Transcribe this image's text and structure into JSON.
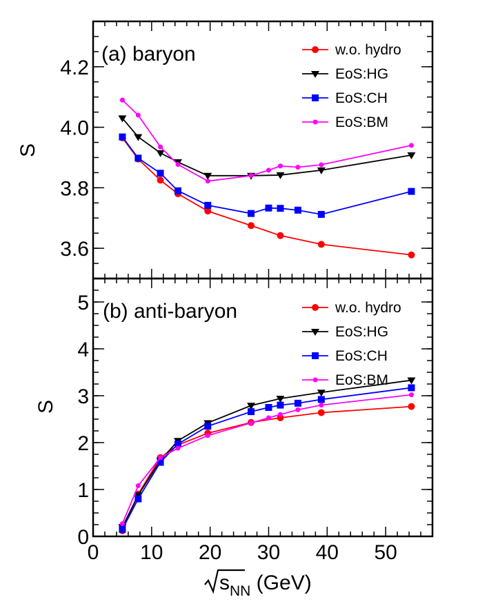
{
  "chart_data": [
    {
      "type": "line",
      "panel_label": "(a) baryon",
      "xlabel": "√s_NN (GeV)",
      "ylabel": "S",
      "xlim": [
        0,
        58
      ],
      "ylim": [
        3.5,
        4.35
      ],
      "y_ticks": [
        "3.6",
        "3.8",
        "4.0",
        "4.2"
      ],
      "legend_position": "top-right",
      "series": [
        {
          "name": "w.o. hydro",
          "color": "#ff0000",
          "marker": "circle",
          "x": [
            5,
            7.7,
            11.5,
            14.5,
            19.6,
            27,
            32,
            39,
            54.4
          ],
          "y": [
            3.965,
            3.895,
            3.825,
            3.78,
            3.723,
            3.675,
            3.642,
            3.613,
            3.578
          ]
        },
        {
          "name": "EoS:HG",
          "color": "#000000",
          "marker": "triangle-down",
          "x": [
            5,
            7.7,
            11.5,
            14.5,
            19.6,
            27,
            32,
            39,
            54.4
          ],
          "y": [
            4.03,
            3.968,
            3.915,
            3.885,
            3.84,
            3.84,
            3.842,
            3.858,
            3.908
          ]
        },
        {
          "name": "EoS:CH",
          "color": "#0000ff",
          "marker": "square",
          "x": [
            5,
            7.7,
            11.5,
            14.5,
            19.6,
            27,
            30,
            32,
            35,
            39,
            54.4
          ],
          "y": [
            3.968,
            3.898,
            3.848,
            3.79,
            3.742,
            3.715,
            3.733,
            3.732,
            3.726,
            3.712,
            3.788
          ]
        },
        {
          "name": "EoS:BM",
          "color": "#ff00ff",
          "marker": "small-circle",
          "x": [
            5,
            7.7,
            11.5,
            14.5,
            19.6,
            27,
            30,
            32,
            35,
            39,
            54.4
          ],
          "y": [
            4.09,
            4.04,
            3.935,
            3.877,
            3.822,
            3.84,
            3.858,
            3.872,
            3.868,
            3.876,
            3.94
          ]
        }
      ]
    },
    {
      "type": "line",
      "panel_label": "(b) anti-baryon",
      "xlabel": "√s_NN (GeV)",
      "ylabel": "S",
      "xlim": [
        0,
        58
      ],
      "ylim": [
        0,
        5.5
      ],
      "x_ticks": [
        "0",
        "10",
        "20",
        "30",
        "40",
        "50"
      ],
      "y_ticks": [
        "0",
        "1",
        "2",
        "3",
        "4",
        "5"
      ],
      "legend_position": "top-right",
      "series": [
        {
          "name": "w.o. hydro",
          "color": "#ff0000",
          "marker": "circle",
          "x": [
            5,
            7.7,
            11.5,
            14.5,
            19.6,
            27,
            32,
            39,
            54.4
          ],
          "y": [
            0.12,
            0.9,
            1.68,
            1.95,
            2.2,
            2.43,
            2.53,
            2.64,
            2.77
          ]
        },
        {
          "name": "EoS:HG",
          "color": "#000000",
          "marker": "triangle-down",
          "x": [
            5,
            7.7,
            11.5,
            14.5,
            19.6,
            27,
            32,
            39,
            54.4
          ],
          "y": [
            0.2,
            0.88,
            1.62,
            2.04,
            2.42,
            2.79,
            2.94,
            3.07,
            3.33
          ]
        },
        {
          "name": "EoS:CH",
          "color": "#0000ff",
          "marker": "square",
          "x": [
            5,
            7.7,
            11.5,
            14.5,
            19.6,
            27,
            30,
            32,
            35,
            39,
            54.4
          ],
          "y": [
            0.15,
            0.8,
            1.58,
            1.97,
            2.35,
            2.66,
            2.75,
            2.8,
            2.84,
            2.92,
            3.17
          ]
        },
        {
          "name": "EoS:BM",
          "color": "#ff00ff",
          "marker": "small-circle",
          "x": [
            5,
            7.7,
            11.5,
            14.5,
            19.6,
            27,
            30,
            32,
            35,
            39,
            54.4
          ],
          "y": [
            0.27,
            1.08,
            1.68,
            1.88,
            2.15,
            2.42,
            2.53,
            2.6,
            2.7,
            2.8,
            3.02
          ]
        }
      ]
    }
  ]
}
